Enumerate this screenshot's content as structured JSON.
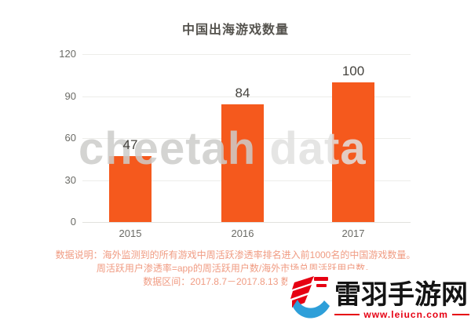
{
  "title": "中国出海游戏数量",
  "chart_data": {
    "type": "bar",
    "title": "中国出海游戏数量",
    "categories": [
      "2015",
      "2016",
      "2017"
    ],
    "values": [
      47,
      84,
      100
    ],
    "value_labels": [
      "47",
      "84",
      "100"
    ],
    "ylim": [
      0,
      120
    ],
    "yticks_top_down": [
      "120",
      "90",
      "60",
      "30",
      "0"
    ],
    "xlabel": "",
    "ylabel": "",
    "grid": true,
    "legend_position": "none",
    "bar_color": "#F5591D"
  },
  "watermark": {
    "word1": "cheetah",
    "word2": "data"
  },
  "footnote": {
    "line1": "数据说明：海外监测到的所有游戏中周活跃渗透率排名进入前1000名的中国游戏数量。",
    "line2": "周活跃用户渗透率=app的周活跃用户数/海外市场总周活跃用户数。",
    "line3": "数据区间：2017.8.7－2017.8.13 数据来源："
  },
  "logo": {
    "site_name": "雷羽手游网",
    "site_url": "www.leiucn.com",
    "icon": "lightning-swoosh-logo-icon",
    "red": "#E60012",
    "blue": "#2E9FD9",
    "text_color": "#141414"
  },
  "colors": {
    "bar": "#F5591D",
    "title_text": "#55534E",
    "value_label_text": "#45433E",
    "axis_label_text": "#6B6B66",
    "gridline": "#EDEDEA",
    "footnote_text": "#F09B82",
    "background": "#FFFFFF"
  }
}
